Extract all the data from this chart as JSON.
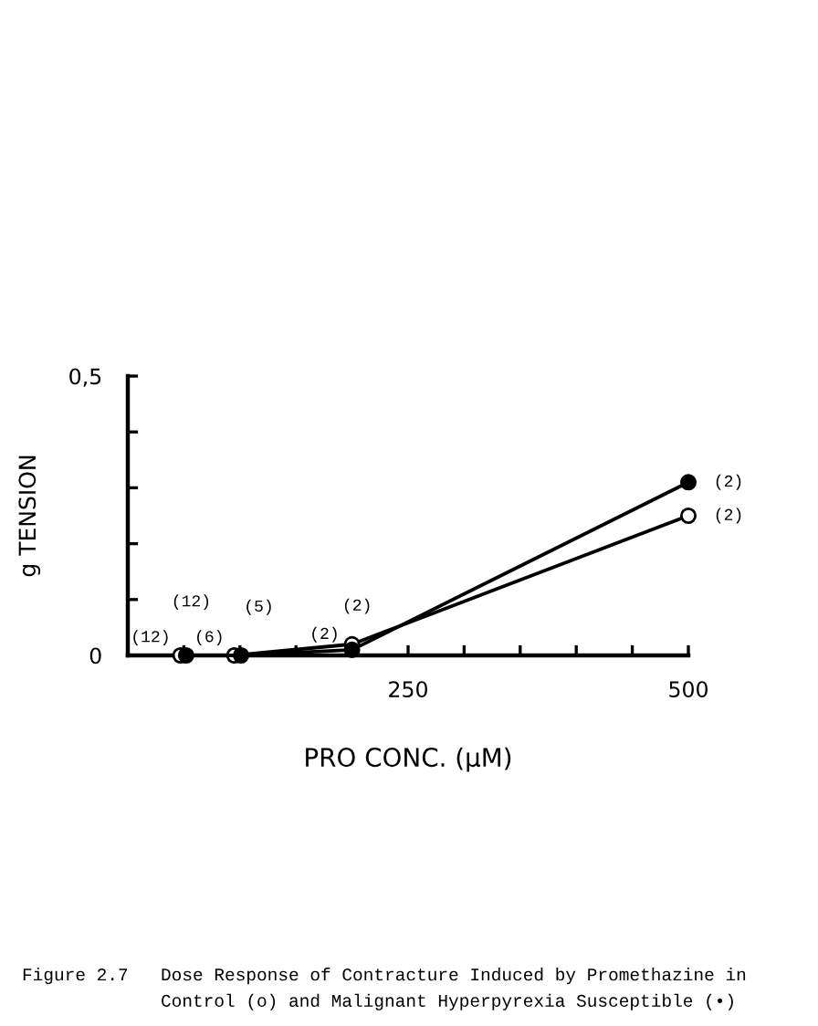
{
  "chart_data": {
    "type": "line",
    "xlabel": "PRO CONC. (μM)",
    "ylabel": "g TENSION",
    "xlim": [
      0,
      500
    ],
    "ylim": [
      0,
      0.5
    ],
    "xticks": [
      {
        "value": 0,
        "label": null
      },
      {
        "value": 50,
        "label": null
      },
      {
        "value": 100,
        "label": null
      },
      {
        "value": 150,
        "label": null
      },
      {
        "value": 200,
        "label": null
      },
      250,
      {
        "value": 300,
        "label": null
      },
      {
        "value": 350,
        "label": null
      },
      {
        "value": 400,
        "label": null
      },
      {
        "value": 450,
        "label": null
      },
      500
    ],
    "yticks": [
      0,
      {
        "value": 0.1,
        "label": null
      },
      {
        "value": 0.2,
        "label": null
      },
      {
        "value": 0.3,
        "label": null
      },
      {
        "value": 0.4,
        "label": null
      },
      {
        "value": 0.5,
        "label": "0,5"
      }
    ],
    "marker": "circle",
    "line_style": "solid",
    "series": [
      {
        "color": "#000000",
        "x": [
          47,
          95,
          200,
          500
        ],
        "values": [
          0,
          0,
          0.02,
          0.25
        ]
      },
      {
        "color": "#000000",
        "x": [
          52,
          101,
          200,
          500
        ],
        "values": [
          0,
          0,
          0.01,
          0.31
        ]
      }
    ],
    "annotations": [
      {
        "text": "(12)",
        "x": 47,
        "y": 0
      },
      {
        "text": "(12)",
        "x": 52,
        "y": 0
      },
      {
        "text": "(6)",
        "x": 95,
        "y": 0
      },
      {
        "text": "(5)",
        "x": 101,
        "y": 0
      },
      {
        "text": "(2)",
        "x": 200,
        "y": 0.01
      },
      {
        "text": "(2)",
        "x": 200,
        "y": 0.02
      },
      {
        "text": "(2)",
        "x": 500,
        "y": 0.31
      },
      {
        "text": "(2)",
        "x": 500,
        "y": 0.25
      },
      "Figure 2.7",
      "Dose Response of Contracture Induced by Promethazine in\nControl (o) and Malignant Hyperpyrexia Susceptible (•)"
    ]
  }
}
